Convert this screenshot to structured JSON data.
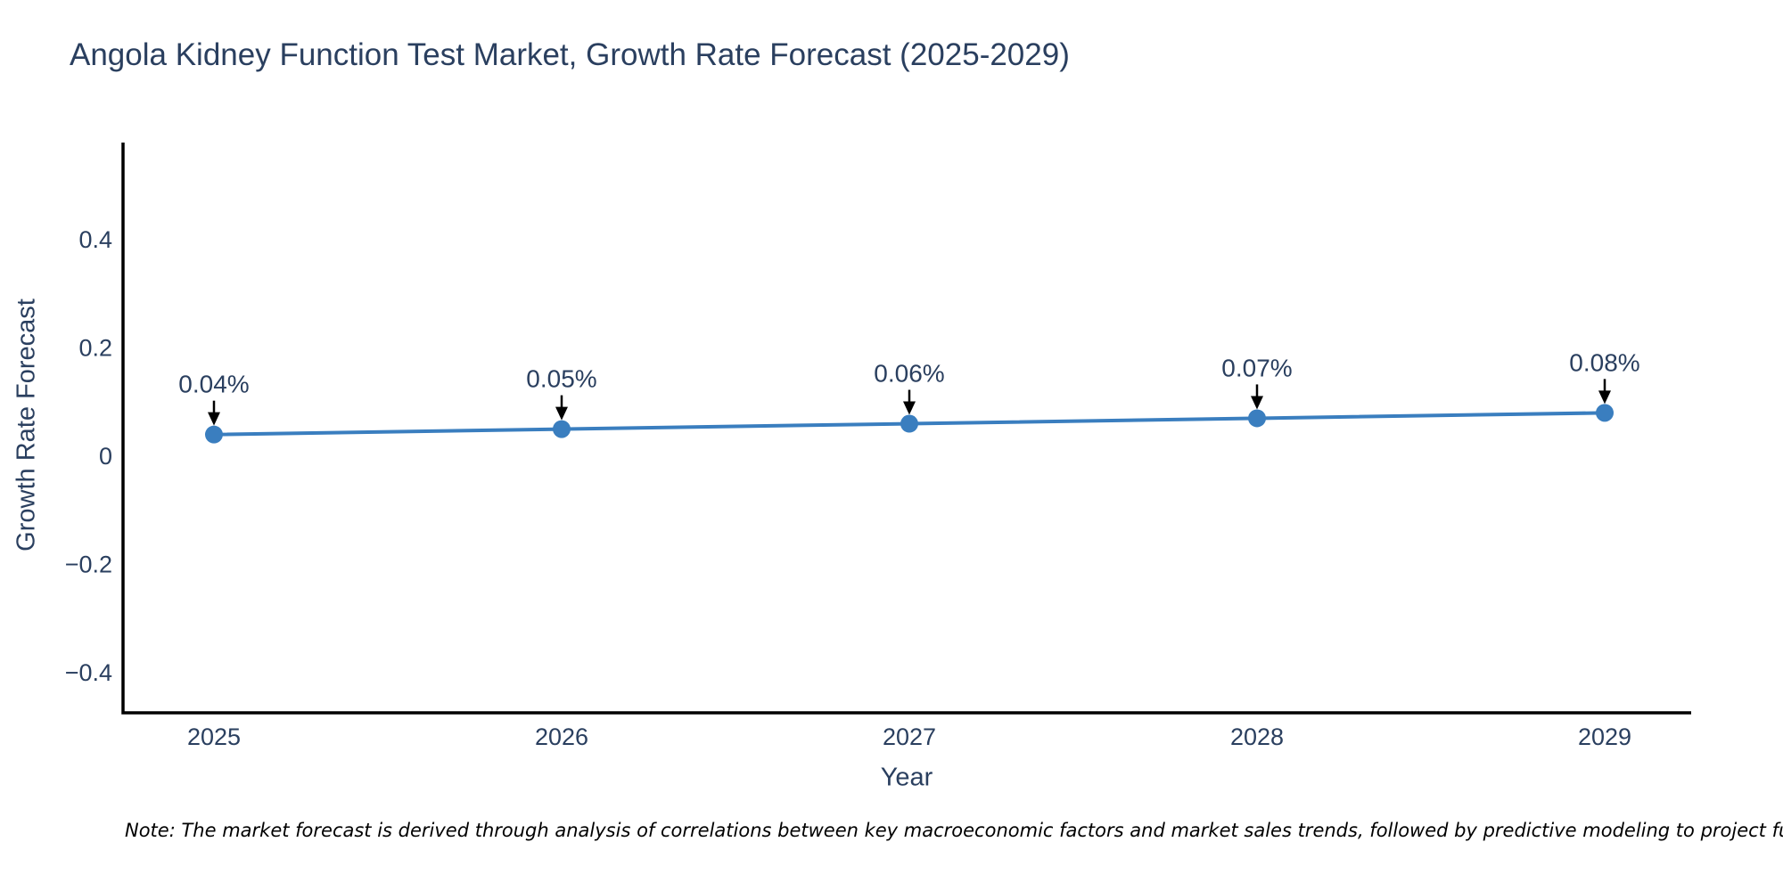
{
  "chart_data": {
    "type": "line",
    "title": "Angola Kidney Function Test Market, Growth Rate Forecast (2025-2029)",
    "xlabel": "Year",
    "ylabel": "Growth Rate Forecast",
    "x": [
      2025,
      2026,
      2027,
      2028,
      2029
    ],
    "series": [
      {
        "name": "Growth Rate Forecast",
        "values": [
          0.04,
          0.05,
          0.06,
          0.07,
          0.08
        ]
      }
    ],
    "point_labels": [
      "0.04%",
      "0.05%",
      "0.06%",
      "0.07%",
      "0.08%"
    ],
    "x_tick_labels": [
      "2025",
      "2026",
      "2027",
      "2028",
      "2029"
    ],
    "y_ticks": [
      -0.4,
      -0.2,
      0,
      0.2,
      0.4
    ],
    "y_tick_labels": [
      "−0.4",
      "−0.2",
      "0",
      "0.2",
      "0.4"
    ],
    "ylim": [
      -0.474,
      0.579
    ],
    "grid": false,
    "legend_position": "none",
    "line_color": "#3a7ebf",
    "marker_color": "#3a7ebf",
    "arrow_color": "#000000",
    "text_color": "#2a3f5f",
    "axis_line_color": "#000000",
    "background_color": "#ffffff"
  },
  "note": "Note: The market forecast is derived through analysis of correlations between key macroeconomic factors and market sales trends, followed by predictive modeling to project future sa"
}
